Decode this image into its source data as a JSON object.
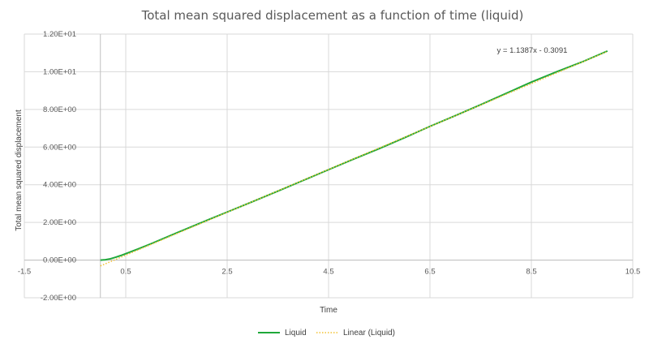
{
  "chart_data": {
    "type": "line",
    "title": "Total mean squared displacement as a function of time (liquid)",
    "xlabel": "Time",
    "ylabel": "Total mean squared displacement",
    "xlim": [
      -1.5,
      10.5
    ],
    "ylim": [
      -2,
      12
    ],
    "x_ticks": [
      "-1.5",
      "0.5",
      "2.5",
      "4.5",
      "6.5",
      "8.5",
      "10.5"
    ],
    "x_tick_values": [
      -1.5,
      0.5,
      2.5,
      4.5,
      6.5,
      8.5,
      10.5
    ],
    "y_ticks": [
      "-2.00E+00",
      "0.00E+00",
      "2.00E+00",
      "4.00E+00",
      "6.00E+00",
      "8.00E+00",
      "1.00E+01",
      "1.20E+01"
    ],
    "y_tick_values": [
      -2,
      0,
      2,
      4,
      6,
      8,
      10,
      12
    ],
    "grid": true,
    "legend_position": "bottom",
    "series": [
      {
        "name": "Liquid",
        "color": "#1fa83a",
        "style": "solid",
        "x": [
          0.0,
          0.1,
          0.2,
          0.3,
          0.4,
          0.5,
          0.75,
          1.0,
          1.5,
          2.0,
          2.5,
          3.0,
          3.5,
          4.0,
          4.5,
          5.0,
          5.5,
          6.0,
          6.5,
          7.0,
          7.5,
          8.0,
          8.5,
          9.0,
          9.5,
          10.0
        ],
        "y": [
          0.0,
          0.02,
          0.07,
          0.15,
          0.24,
          0.34,
          0.6,
          0.87,
          1.44,
          2.0,
          2.55,
          3.1,
          3.66,
          4.23,
          4.8,
          5.37,
          5.92,
          6.5,
          7.1,
          7.67,
          8.25,
          8.85,
          9.45,
          10.0,
          10.52,
          11.1
        ]
      },
      {
        "name": "Linear (Liquid)",
        "color": "#f2c232",
        "style": "dotted",
        "trendline": {
          "slope": 1.1387,
          "intercept": -0.3091,
          "x_range": [
            0,
            10.0
          ]
        }
      }
    ],
    "annotations": [
      {
        "text": "y = 1.1387x - 0.3091",
        "x": 8.3,
        "y": 11.0
      }
    ]
  }
}
